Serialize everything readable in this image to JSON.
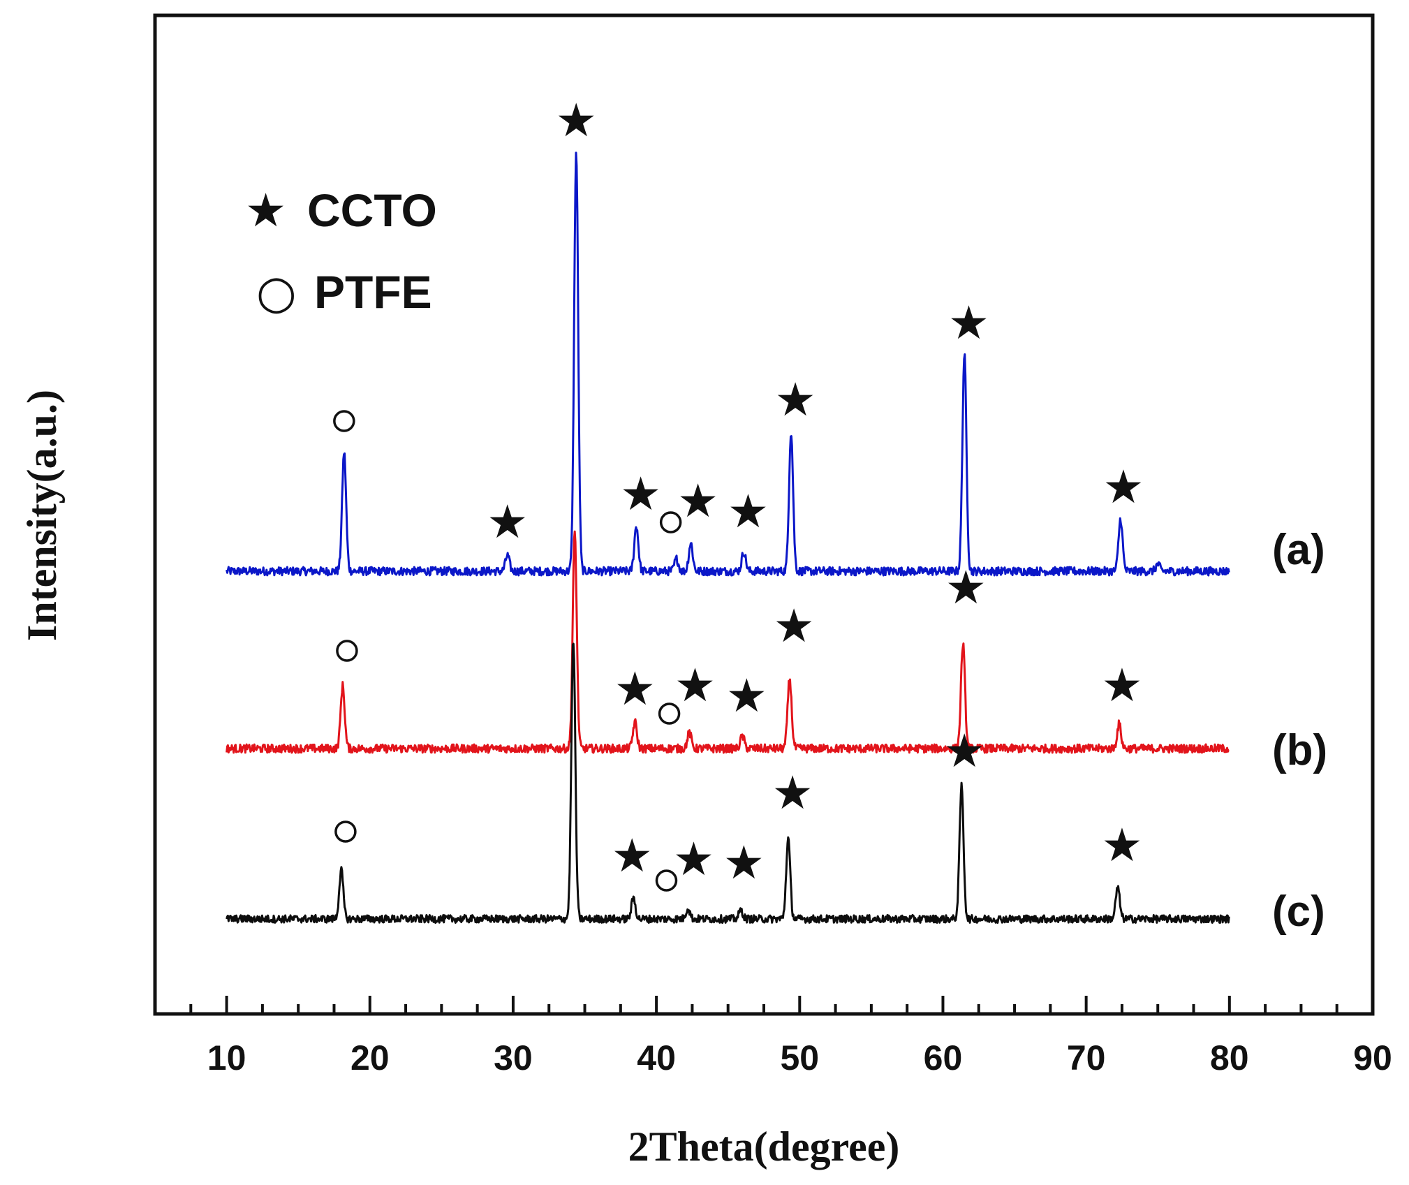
{
  "chart_data": {
    "type": "line",
    "title": "",
    "xlabel": "2Theta(degree)",
    "ylabel": "Intensity(a.u.)",
    "xlim": [
      5,
      90
    ],
    "x_ticks": [
      10,
      20,
      30,
      40,
      50,
      60,
      70,
      80,
      90
    ],
    "x_tick_labels": [
      "10",
      "20",
      "30",
      "40",
      "50",
      "60",
      "70",
      "80",
      "90"
    ],
    "x_minor_step": 2.5,
    "yunits": "arbitrary, stacked traces",
    "x_range_traces": [
      10,
      80
    ],
    "legend": [
      {
        "symbol": "star",
        "glyph": "★",
        "label": "CCTO"
      },
      {
        "symbol": "circle",
        "glyph": "○",
        "label": "PTFE"
      }
    ],
    "series": [
      {
        "name": "(a)",
        "color": "#0b17c8",
        "baseline": 0.0,
        "noise": 0.012,
        "peaks": [
          [
            18.2,
            0.34
          ],
          [
            29.6,
            0.045
          ],
          [
            34.4,
            1.2
          ],
          [
            38.6,
            0.13
          ],
          [
            41.4,
            0.035
          ],
          [
            42.4,
            0.08
          ],
          [
            46.1,
            0.055
          ],
          [
            49.4,
            0.4
          ],
          [
            61.5,
            0.62
          ],
          [
            72.4,
            0.15
          ],
          [
            75.0,
            0.02
          ]
        ],
        "annotations": [
          {
            "symbol": "circle",
            "x": 18.2,
            "y": 0.43
          },
          {
            "symbol": "star",
            "x": 29.6,
            "y": 0.14
          },
          {
            "symbol": "star",
            "x": 34.4,
            "y": 1.29
          },
          {
            "symbol": "star",
            "x": 38.9,
            "y": 0.22
          },
          {
            "symbol": "circle",
            "x": 41.0,
            "y": 0.14
          },
          {
            "symbol": "star",
            "x": 42.9,
            "y": 0.2
          },
          {
            "symbol": "star",
            "x": 46.4,
            "y": 0.17
          },
          {
            "symbol": "star",
            "x": 49.7,
            "y": 0.49
          },
          {
            "symbol": "star",
            "x": 61.8,
            "y": 0.71
          },
          {
            "symbol": "star",
            "x": 72.6,
            "y": 0.24
          }
        ]
      },
      {
        "name": "(b)",
        "color": "#e2141b",
        "baseline": 0.0,
        "noise": 0.012,
        "peaks": [
          [
            18.1,
            0.18
          ],
          [
            34.3,
            0.62
          ],
          [
            38.5,
            0.075
          ],
          [
            42.3,
            0.045
          ],
          [
            46.0,
            0.035
          ],
          [
            49.3,
            0.2
          ],
          [
            61.4,
            0.3
          ],
          [
            72.3,
            0.07
          ]
        ],
        "annotations": [
          {
            "symbol": "circle",
            "x": 18.4,
            "y": 0.28
          },
          {
            "symbol": "star",
            "x": 38.5,
            "y": 0.17
          },
          {
            "symbol": "circle",
            "x": 40.9,
            "y": 0.1
          },
          {
            "symbol": "star",
            "x": 42.7,
            "y": 0.18
          },
          {
            "symbol": "star",
            "x": 46.3,
            "y": 0.15
          },
          {
            "symbol": "star",
            "x": 49.6,
            "y": 0.35
          },
          {
            "symbol": "star",
            "x": 61.6,
            "y": 0.46
          },
          {
            "symbol": "star",
            "x": 72.5,
            "y": 0.18
          }
        ]
      },
      {
        "name": "(c)",
        "color": "#0d0d0d",
        "baseline": 0.0,
        "noise": 0.011,
        "peaks": [
          [
            18.0,
            0.14
          ],
          [
            34.2,
            0.8
          ],
          [
            38.4,
            0.06
          ],
          [
            42.2,
            0.03
          ],
          [
            45.9,
            0.025
          ],
          [
            49.2,
            0.23
          ],
          [
            61.3,
            0.38
          ],
          [
            72.2,
            0.09
          ]
        ],
        "annotations": [
          {
            "symbol": "circle",
            "x": 18.3,
            "y": 0.25
          },
          {
            "symbol": "star",
            "x": 38.3,
            "y": 0.18
          },
          {
            "symbol": "circle",
            "x": 40.7,
            "y": 0.11
          },
          {
            "symbol": "star",
            "x": 42.6,
            "y": 0.17
          },
          {
            "symbol": "star",
            "x": 46.1,
            "y": 0.16
          },
          {
            "symbol": "star",
            "x": 49.5,
            "y": 0.36
          },
          {
            "symbol": "star",
            "x": 61.5,
            "y": 0.48
          },
          {
            "symbol": "star",
            "x": 72.5,
            "y": 0.21
          }
        ]
      }
    ]
  }
}
